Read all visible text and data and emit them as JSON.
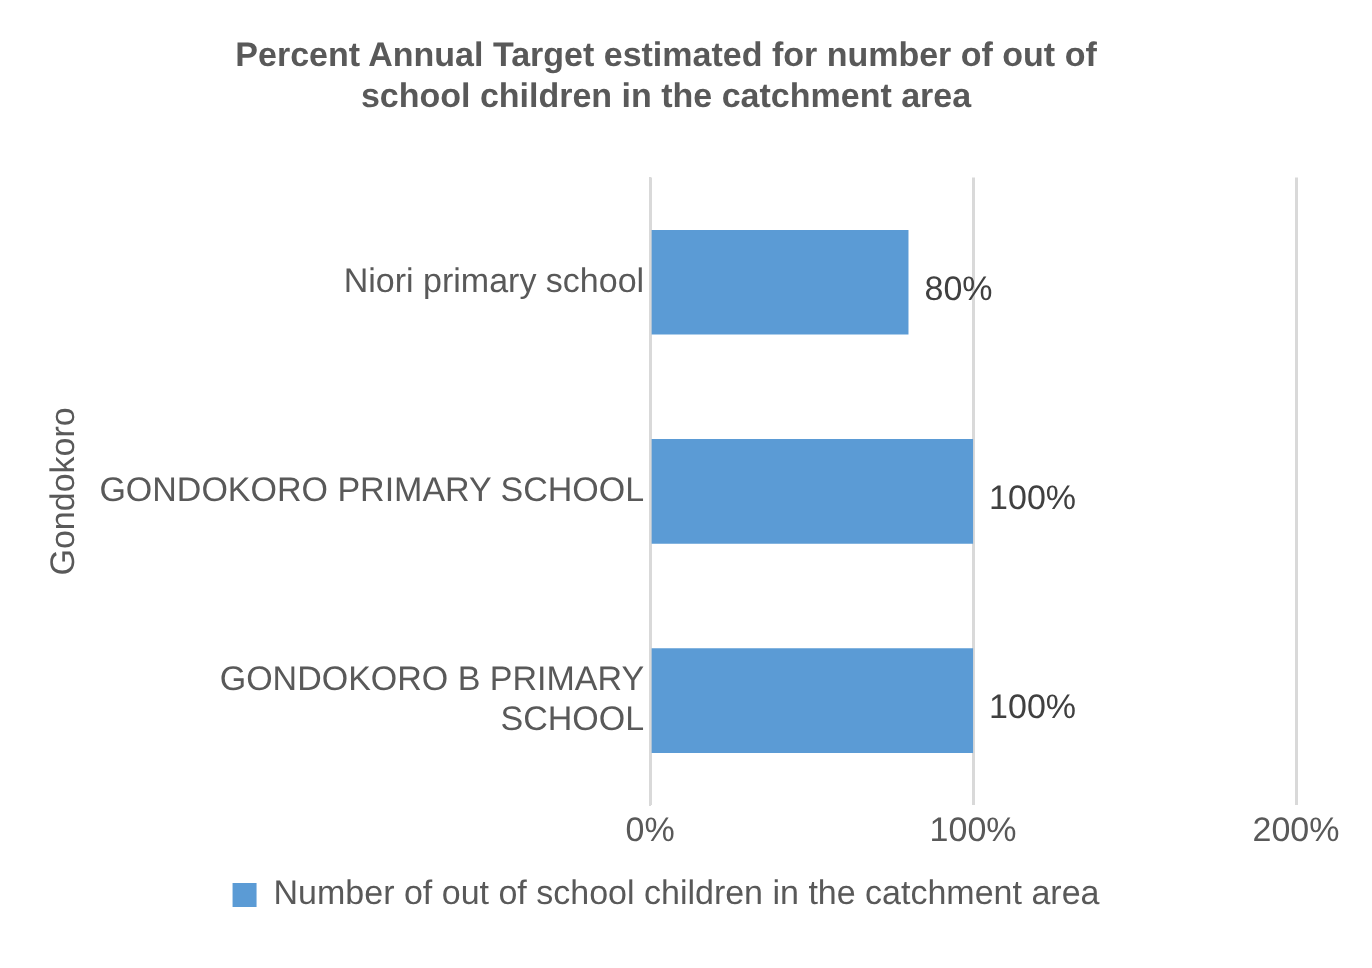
{
  "chart_data": {
    "type": "bar",
    "orientation": "horizontal",
    "title": "Percent Annual Target estimated for number of out of school children in the catchment area",
    "ylabel": "Gondokoro",
    "categories": [
      "Niori primary school",
      "GONDOKORO PRIMARY SCHOOL",
      "GONDOKORO B PRIMARY SCHOOL"
    ],
    "series": [
      {
        "name": "Number of out of school children in the catchment area",
        "color": "#5b9bd5",
        "values": [
          80,
          100,
          100
        ],
        "value_labels": [
          "80%",
          "100%",
          "100%"
        ]
      }
    ],
    "xlim": [
      0,
      200
    ],
    "xticks": [
      {
        "value": 0,
        "label": "0%"
      },
      {
        "value": 100,
        "label": "100%"
      },
      {
        "value": 200,
        "label": "200%"
      }
    ],
    "grid": "x",
    "legend": "bottom"
  }
}
